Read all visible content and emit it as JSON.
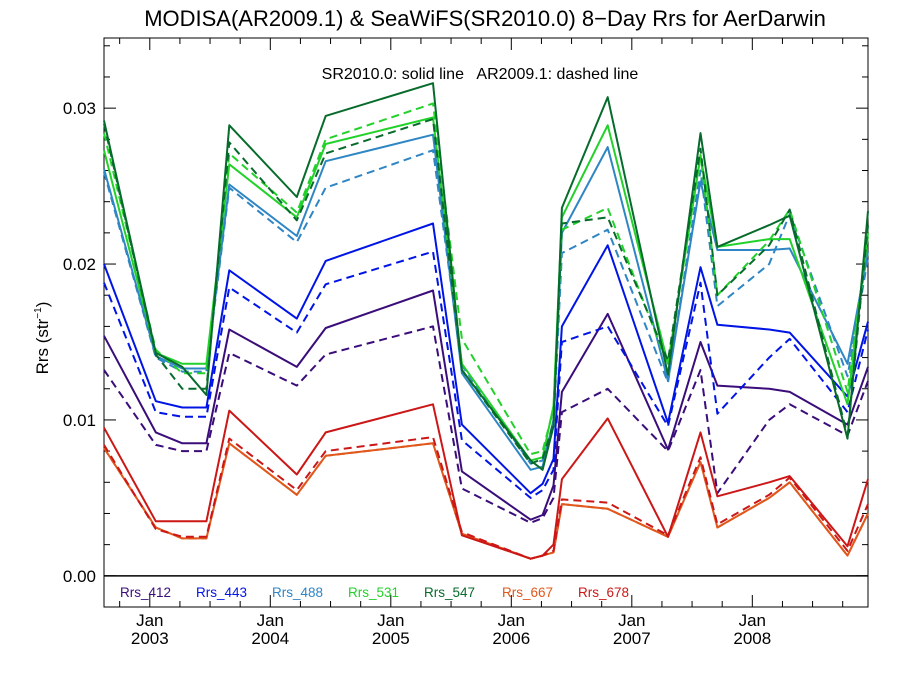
{
  "chart_data": {
    "type": "line",
    "title": "MODISA(AR2009.1) & SeaWiFS(SR2010.0) 8−Day Rrs for AerDarwin",
    "annotation": "SR2010.0: solid line   AR2009.1: dashed line",
    "ylabel_main": "Rrs (str",
    "ylabel_sup": "−1",
    "ylabel_end": ")",
    "xlabel": "",
    "ylim": [
      -0.002,
      0.0345
    ],
    "xlim": [
      2002.62,
      2008.96
    ],
    "grid": false,
    "legend_position": "bottom-left",
    "yticks": [
      {
        "value": 0.0,
        "label": "0.00"
      },
      {
        "value": 0.01,
        "label": "0.01"
      },
      {
        "value": 0.02,
        "label": "0.02"
      },
      {
        "value": 0.03,
        "label": "0.03"
      }
    ],
    "xticks": [
      {
        "value": 2003,
        "month": "Jan",
        "year": "2003"
      },
      {
        "value": 2004,
        "month": "Jan",
        "year": "2004"
      },
      {
        "value": 2005,
        "month": "Jan",
        "year": "2005"
      },
      {
        "value": 2006,
        "month": "Jan",
        "year": "2006"
      },
      {
        "value": 2007,
        "month": "Jan",
        "year": "2007"
      },
      {
        "value": 2008,
        "month": "Jan",
        "year": "2008"
      }
    ],
    "x": [
      2002.62,
      2003.05,
      2003.27,
      2003.47,
      2003.66,
      2004.22,
      2004.46,
      2005.35,
      2005.59,
      2006.16,
      2006.26,
      2006.35,
      2006.42,
      2006.8,
      2007.3,
      2007.57,
      2007.71,
      2008.14,
      2008.31,
      2008.79,
      2008.96
    ],
    "series": [
      {
        "name": "Rrs_412",
        "color": "#3a0d7a",
        "solid": [
          0.0154,
          0.0092,
          0.0085,
          0.0085,
          0.0158,
          0.0134,
          0.0159,
          0.0183,
          0.0067,
          0.0036,
          0.0039,
          0.0058,
          0.0118,
          0.0168,
          0.0081,
          0.015,
          0.0122,
          0.012,
          0.0118,
          0.0097,
          0.0134
        ],
        "dashed": [
          0.0132,
          0.0084,
          0.008,
          0.008,
          0.0143,
          0.0122,
          0.0142,
          0.016,
          0.0056,
          0.0034,
          0.0037,
          0.005,
          0.0105,
          0.012,
          0.008,
          0.0132,
          0.0053,
          0.01,
          0.011,
          0.009,
          0.0125
        ]
      },
      {
        "name": "Rrs_443",
        "color": "#0014e6",
        "solid": [
          0.02,
          0.0112,
          0.0108,
          0.0108,
          0.0196,
          0.0165,
          0.0202,
          0.0226,
          0.0097,
          0.0053,
          0.0059,
          0.0075,
          0.016,
          0.0212,
          0.0098,
          0.0198,
          0.0161,
          0.0158,
          0.0156,
          0.0115,
          0.0163
        ],
        "dashed": [
          0.0188,
          0.0105,
          0.0102,
          0.0102,
          0.0185,
          0.0156,
          0.0187,
          0.0208,
          0.0087,
          0.005,
          0.0055,
          0.0068,
          0.015,
          0.016,
          0.0096,
          0.0188,
          0.0104,
          0.014,
          0.0152,
          0.0105,
          0.0158
        ]
      },
      {
        "name": "Rrs_488",
        "color": "#2f86c4",
        "solid": [
          0.0261,
          0.0141,
          0.0133,
          0.0133,
          0.0251,
          0.0218,
          0.0266,
          0.0283,
          0.013,
          0.0068,
          0.007,
          0.01,
          0.022,
          0.0275,
          0.0125,
          0.0253,
          0.0209,
          0.0209,
          0.021,
          0.0136,
          0.0208
        ],
        "dashed": [
          0.0259,
          0.014,
          0.0131,
          0.0131,
          0.0249,
          0.0214,
          0.0249,
          0.0273,
          0.0135,
          0.0072,
          0.0074,
          0.0095,
          0.0207,
          0.0222,
          0.0124,
          0.026,
          0.0173,
          0.02,
          0.0232,
          0.0128,
          0.0204
        ]
      },
      {
        "name": "Rrs_531",
        "color": "#22d12a",
        "solid": [
          0.0273,
          0.0143,
          0.0136,
          0.0136,
          0.0264,
          0.023,
          0.0277,
          0.0294,
          0.0136,
          0.0074,
          0.0076,
          0.0109,
          0.023,
          0.0289,
          0.0136,
          0.0269,
          0.0211,
          0.0216,
          0.0216,
          0.011,
          0.022
        ],
        "dashed": [
          0.0284,
          0.0145,
          0.013,
          0.013,
          0.0271,
          0.0233,
          0.028,
          0.0303,
          0.0152,
          0.0078,
          0.008,
          0.0107,
          0.0222,
          0.0236,
          0.0135,
          0.027,
          0.018,
          0.0215,
          0.0235,
          0.0118,
          0.0218
        ]
      },
      {
        "name": "Rrs_547",
        "color": "#066b2b",
        "solid": [
          0.0292,
          0.0143,
          0.0134,
          0.0116,
          0.0289,
          0.0243,
          0.0295,
          0.0316,
          0.0132,
          0.0074,
          0.0068,
          0.0096,
          0.0236,
          0.0307,
          0.0129,
          0.0284,
          0.0211,
          0.0225,
          0.0231,
          0.0088,
          0.0234
        ],
        "dashed": [
          0.029,
          0.0142,
          0.012,
          0.012,
          0.0278,
          0.0228,
          0.0271,
          0.0293,
          0.0132,
          0.0072,
          0.0075,
          0.0098,
          0.0226,
          0.023,
          0.0138,
          0.0274,
          0.018,
          0.0212,
          0.0235,
          0.009,
          0.0225
        ]
      },
      {
        "name": "Rrs_667",
        "color": "#e0581c",
        "solid": [
          0.0082,
          0.0031,
          0.0024,
          0.0024,
          0.0085,
          0.0052,
          0.0077,
          0.0085,
          0.0027,
          0.0011,
          0.0013,
          0.0015,
          0.0046,
          0.0043,
          0.0025,
          0.0073,
          0.0031,
          0.005,
          0.006,
          0.0013,
          0.004
        ],
        "dashed": [
          0.0082,
          0.0031,
          0.0024,
          0.0024,
          0.0085,
          0.0052,
          0.0077,
          0.0085,
          0.0027,
          0.0011,
          0.0013,
          0.0015,
          0.0046,
          0.0043,
          0.0025,
          0.0073,
          0.0031,
          0.005,
          0.006,
          0.0013,
          0.004
        ]
      },
      {
        "name": "Rrs_678",
        "color": "#cc1717",
        "solid": [
          0.0095,
          0.0035,
          0.0035,
          0.0035,
          0.0106,
          0.0065,
          0.0092,
          0.011,
          0.0026,
          0.0011,
          0.0013,
          0.002,
          0.0062,
          0.0101,
          0.0025,
          0.0092,
          0.0051,
          0.006,
          0.0064,
          0.0019,
          0.0062
        ],
        "dashed": [
          0.0084,
          0.003,
          0.0025,
          0.0025,
          0.0088,
          0.0055,
          0.008,
          0.0089,
          0.0028,
          0.0011,
          0.0013,
          0.0016,
          0.0049,
          0.0047,
          0.0026,
          0.0076,
          0.0033,
          0.0052,
          0.0063,
          0.0016,
          0.0046
        ]
      }
    ]
  }
}
